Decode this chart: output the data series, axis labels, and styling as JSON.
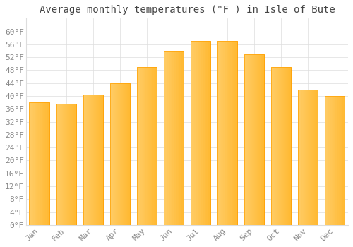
{
  "title": "Average monthly temperatures (°F ) in Isle of Bute",
  "months": [
    "Jan",
    "Feb",
    "Mar",
    "Apr",
    "May",
    "Jun",
    "Jul",
    "Aug",
    "Sep",
    "Oct",
    "Nov",
    "Dec"
  ],
  "values": [
    38,
    37.5,
    40.5,
    44,
    49,
    54,
    57,
    57,
    53,
    49,
    42,
    40
  ],
  "bar_color_main": "#FFB830",
  "bar_color_left": "#FFCC66",
  "bar_color_edge": "#FFA000",
  "background_color": "#ffffff",
  "grid_color": "#dddddd",
  "ytick_min": 0,
  "ytick_max": 60,
  "ytick_step": 4,
  "title_fontsize": 10,
  "tick_fontsize": 8,
  "font_family": "monospace",
  "tick_color": "#888888",
  "title_color": "#444444"
}
